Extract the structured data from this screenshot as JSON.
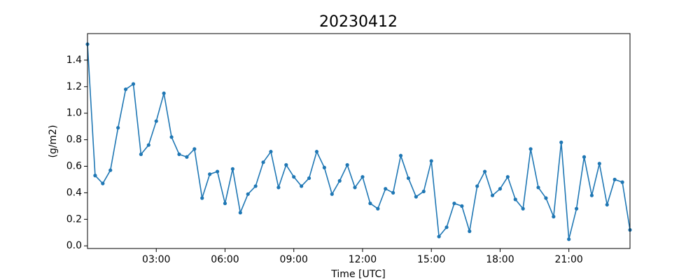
{
  "chart_data": {
    "type": "line",
    "title": "20230412",
    "xlabel": "Time [UTC]",
    "ylabel": "(g/m2)",
    "x": [
      0,
      20,
      40,
      60,
      80,
      100,
      120,
      140,
      160,
      180,
      200,
      220,
      240,
      260,
      280,
      300,
      320,
      340,
      360,
      380,
      400,
      420,
      440,
      460,
      480,
      500,
      520,
      540,
      560,
      580,
      600,
      620,
      640,
      660,
      680,
      700,
      720,
      740,
      760,
      780,
      800,
      820,
      840,
      860,
      880,
      900,
      920,
      940,
      960,
      980,
      1000,
      1020,
      1040,
      1060,
      1080,
      1100,
      1120,
      1140,
      1160,
      1180,
      1200,
      1220,
      1240,
      1260,
      1280,
      1300,
      1320,
      1340,
      1360,
      1380,
      1400,
      1420
    ],
    "series": [
      {
        "name": "(g/m2)",
        "color": "#1f77b4",
        "values": [
          1.52,
          0.53,
          0.47,
          0.57,
          0.89,
          1.18,
          1.22,
          0.69,
          0.76,
          0.94,
          1.15,
          0.82,
          0.69,
          0.67,
          0.73,
          0.36,
          0.54,
          0.56,
          0.32,
          0.58,
          0.25,
          0.39,
          0.45,
          0.63,
          0.71,
          0.44,
          0.61,
          0.52,
          0.45,
          0.51,
          0.71,
          0.59,
          0.39,
          0.49,
          0.61,
          0.44,
          0.52,
          0.32,
          0.28,
          0.43,
          0.4,
          0.68,
          0.51,
          0.37,
          0.41,
          0.64,
          0.07,
          0.14,
          0.32,
          0.3,
          0.11,
          0.45,
          0.56,
          0.38,
          0.43,
          0.52,
          0.35,
          0.28,
          0.73,
          0.44,
          0.36,
          0.22,
          0.78,
          0.05,
          0.28,
          0.67,
          0.38,
          0.62,
          0.31,
          0.5,
          0.48,
          0.12
        ]
      }
    ],
    "xlim": [
      0,
      1420
    ],
    "xticks": [
      {
        "value": 180,
        "label": "03:00"
      },
      {
        "value": 360,
        "label": "06:00"
      },
      {
        "value": 540,
        "label": "09:00"
      },
      {
        "value": 720,
        "label": "12:00"
      },
      {
        "value": 900,
        "label": "15:00"
      },
      {
        "value": 1080,
        "label": "18:00"
      },
      {
        "value": 1260,
        "label": "21:00"
      }
    ],
    "ylim": [
      -0.02,
      1.6
    ],
    "yticks": [
      {
        "value": 0,
        "label": "0.0"
      },
      {
        "value": 0.2,
        "label": "0.2"
      },
      {
        "value": 0.4,
        "label": "0.4"
      },
      {
        "value": 0.6,
        "label": "0.6"
      },
      {
        "value": 0.8,
        "label": "0.8"
      },
      {
        "value": 1,
        "label": "1.0"
      },
      {
        "value": 1.2,
        "label": "1.2"
      },
      {
        "value": 1.4,
        "label": "1.4"
      }
    ],
    "grid": false
  }
}
